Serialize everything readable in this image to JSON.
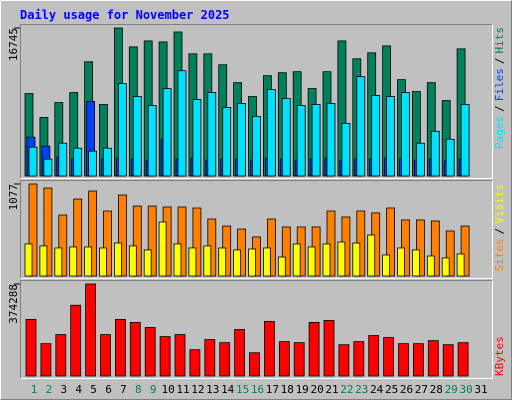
{
  "title": "Daily usage for November 2025",
  "legend_separator": "/",
  "chart_data": [
    {
      "type": "bar",
      "ylim": [
        0,
        16745
      ],
      "yticks": [
        16745
      ],
      "series": [
        {
          "name": "Hits",
          "color": "#00805c",
          "values": [
            9328,
            6630,
            8316,
            9440,
            12924,
            8091,
            16745,
            14610,
            15284,
            15172,
            16295,
            13823,
            13823,
            12587,
            10564,
            8990,
            11351,
            11688,
            11800,
            9890,
            11800,
            15284,
            13261,
            13935,
            14722,
            10901,
            9553,
            10564,
            8541,
            14385,
            null
          ]
        },
        {
          "name": "Files",
          "color": "#0040ff",
          "values": [
            4383,
            3371,
            2135,
            1910,
            8429,
            1910,
            2022,
            1910,
            1798,
            4158,
            1910,
            2022,
            1798,
            1910,
            1910,
            1798,
            2022,
            1910,
            1798,
            1910,
            2022,
            1798,
            1910,
            1910,
            2022,
            1910,
            1798,
            1910,
            1686,
            1910,
            null
          ]
        },
        {
          "name": "Pages",
          "color": "#00e0ff",
          "values": [
            3259,
            1910,
            3709,
            3147,
            2810,
            3147,
            10452,
            8990,
            7979,
            9890,
            11913,
            8654,
            9440,
            7754,
            8204,
            6743,
            9777,
            8766,
            7979,
            8091,
            8204,
            5956,
            11238,
            9103,
            8990,
            9440,
            3709,
            5057,
            4158,
            8091,
            null
          ]
        }
      ]
    },
    {
      "type": "bar",
      "ylim": [
        0,
        1077
      ],
      "yticks": [
        1077
      ],
      "series": [
        {
          "name": "Visits",
          "color": "#ffff00",
          "values": [
            375,
            352,
            328,
            340,
            340,
            328,
            386,
            352,
            305,
            632,
            375,
            328,
            352,
            328,
            305,
            316,
            328,
            222,
            375,
            340,
            375,
            398,
            386,
            480,
            246,
            328,
            305,
            234,
            211,
            258,
            null
          ]
        },
        {
          "name": "Sites",
          "color": "#ff8000",
          "values": [
            1077,
            1030,
            714,
            901,
            995,
            761,
            948,
            819,
            819,
            808,
            808,
            796,
            667,
            585,
            550,
            457,
            667,
            574,
            574,
            574,
            761,
            691,
            761,
            738,
            796,
            656,
            656,
            644,
            527,
            585,
            null
          ]
        }
      ]
    },
    {
      "type": "bar",
      "ylim": [
        0,
        374288
      ],
      "yticks": [
        374288
      ],
      "categories": [
        "1",
        "2",
        "3",
        "4",
        "5",
        "6",
        "7",
        "8",
        "9",
        "10",
        "11",
        "12",
        "13",
        "14",
        "15",
        "16",
        "17",
        "18",
        "19",
        "20",
        "21",
        "22",
        "23",
        "24",
        "25",
        "26",
        "27",
        "28",
        "29",
        "30",
        "31"
      ],
      "category_colors": [
        "#00805c",
        "#00805c",
        "#000000",
        "#000000",
        "#000000",
        "#000000",
        "#000000",
        "#00805c",
        "#00805c",
        "#000000",
        "#000000",
        "#000000",
        "#000000",
        "#000000",
        "#00805c",
        "#00805c",
        "#000000",
        "#000000",
        "#000000",
        "#000000",
        "#000000",
        "#00805c",
        "#00805c",
        "#000000",
        "#000000",
        "#000000",
        "#000000",
        "#000000",
        "#00805c",
        "#00805c",
        "#000000"
      ],
      "series": [
        {
          "name": "KBytes",
          "color": "#ff0000",
          "values": [
            230331,
            131618,
            168635,
            287910,
            374288,
            168635,
            230331,
            217992,
            197427,
            160409,
            168635,
            106940,
            148069,
            135731,
            189200,
            94601,
            222105,
            139844,
            135731,
            217992,
            226218,
            127505,
            139844,
            164522,
            156296,
            131618,
            131618,
            143957,
            127505,
            135731,
            null
          ]
        }
      ]
    }
  ]
}
